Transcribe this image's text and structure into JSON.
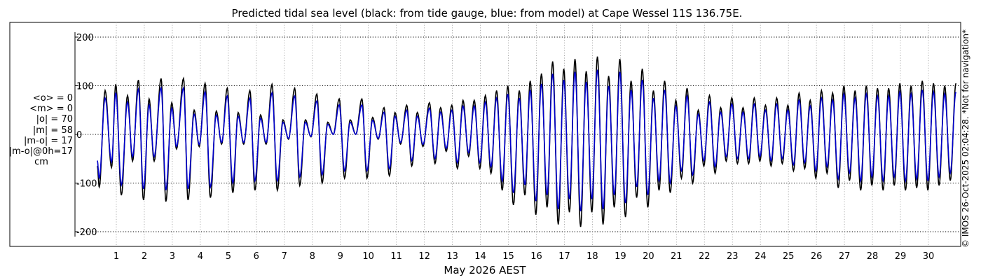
{
  "title": "Predicted tidal sea level (black: from tide gauge, blue: from model) at Cape Wessel 11S 136.75E.",
  "stats": {
    "mean_obs": "<o> = 0",
    "mean_model": "<m> = 0",
    "abs_obs": "|o| = 70",
    "abs_model": "|m| = 58",
    "abs_diff": "|m-o| = 17",
    "abs_diff_0h": "|m-o|@0h=17",
    "unit": "cm"
  },
  "copyright": "© IMOS 26-Oct-2025 02:04:28. *Not for navigation*",
  "colors": {
    "gauge": "#000000",
    "model": "#0000cc",
    "grid": "#999999"
  },
  "chart_data": {
    "type": "line",
    "title": "Predicted tidal sea level (black: from tide gauge, blue: from model) at Cape Wessel 11S 136.75E.",
    "xlabel": "May 2026 AEST",
    "ylabel": "",
    "x_ticks": [
      "1",
      "2",
      "3",
      "4",
      "5",
      "6",
      "7",
      "8",
      "9",
      "10",
      "11",
      "12",
      "13",
      "14",
      "15",
      "16",
      "17",
      "18",
      "19",
      "20",
      "21",
      "22",
      "23",
      "24",
      "25",
      "26",
      "27",
      "28",
      "29",
      "30"
    ],
    "y_ticks": [
      -200,
      -100,
      0,
      100,
      200
    ],
    "xlim": [
      0.3,
      31.0
    ],
    "ylim": [
      -220,
      220
    ],
    "grid": true,
    "series": [
      {
        "name": "tide gauge",
        "color": "#000000",
        "points": [
          [
            0.32,
            -65
          ],
          [
            0.39,
            -108
          ],
          [
            0.6,
            90
          ],
          [
            0.83,
            -68
          ],
          [
            0.98,
            103
          ],
          [
            1.18,
            -125
          ],
          [
            1.4,
            80
          ],
          [
            1.58,
            -55
          ],
          [
            1.79,
            112
          ],
          [
            1.97,
            -135
          ],
          [
            2.17,
            73
          ],
          [
            2.35,
            -55
          ],
          [
            2.6,
            115
          ],
          [
            2.77,
            -138
          ],
          [
            2.98,
            65
          ],
          [
            3.15,
            -30
          ],
          [
            3.4,
            115
          ],
          [
            3.56,
            -135
          ],
          [
            3.78,
            50
          ],
          [
            3.96,
            -25
          ],
          [
            4.17,
            105
          ],
          [
            4.36,
            -130
          ],
          [
            4.57,
            48
          ],
          [
            4.76,
            -20
          ],
          [
            4.96,
            95
          ],
          [
            5.16,
            -120
          ],
          [
            5.35,
            45
          ],
          [
            5.55,
            -20
          ],
          [
            5.77,
            90
          ],
          [
            5.95,
            -115
          ],
          [
            6.15,
            40
          ],
          [
            6.35,
            -20
          ],
          [
            6.56,
            103
          ],
          [
            6.75,
            -115
          ],
          [
            6.95,
            30
          ],
          [
            7.15,
            -10
          ],
          [
            7.37,
            95
          ],
          [
            7.55,
            -105
          ],
          [
            7.75,
            30
          ],
          [
            7.95,
            -5
          ],
          [
            8.16,
            83
          ],
          [
            8.35,
            -100
          ],
          [
            8.55,
            25
          ],
          [
            8.75,
            0
          ],
          [
            8.96,
            73
          ],
          [
            9.15,
            -90
          ],
          [
            9.35,
            30
          ],
          [
            9.55,
            0
          ],
          [
            9.77,
            73
          ],
          [
            9.95,
            -90
          ],
          [
            10.15,
            35
          ],
          [
            10.35,
            -10
          ],
          [
            10.56,
            55
          ],
          [
            10.75,
            -85
          ],
          [
            10.95,
            45
          ],
          [
            11.15,
            -20
          ],
          [
            11.37,
            60
          ],
          [
            11.55,
            -65
          ],
          [
            11.75,
            45
          ],
          [
            11.95,
            -25
          ],
          [
            12.18,
            65
          ],
          [
            12.38,
            -60
          ],
          [
            12.58,
            55
          ],
          [
            12.78,
            -35
          ],
          [
            12.98,
            60
          ],
          [
            13.18,
            -70
          ],
          [
            13.38,
            70
          ],
          [
            13.58,
            -45
          ],
          [
            13.78,
            70
          ],
          [
            13.98,
            -70
          ],
          [
            14.18,
            80
          ],
          [
            14.38,
            -80
          ],
          [
            14.58,
            90
          ],
          [
            14.78,
            -115
          ],
          [
            14.98,
            100
          ],
          [
            15.18,
            -145
          ],
          [
            15.39,
            90
          ],
          [
            15.59,
            -125
          ],
          [
            15.78,
            110
          ],
          [
            15.98,
            -165
          ],
          [
            16.18,
            125
          ],
          [
            16.38,
            -150
          ],
          [
            16.58,
            150
          ],
          [
            16.78,
            -185
          ],
          [
            16.98,
            135
          ],
          [
            17.18,
            -160
          ],
          [
            17.38,
            155
          ],
          [
            17.58,
            -190
          ],
          [
            17.78,
            130
          ],
          [
            17.98,
            -160
          ],
          [
            18.18,
            160
          ],
          [
            18.38,
            -185
          ],
          [
            18.58,
            120
          ],
          [
            18.78,
            -150
          ],
          [
            18.98,
            155
          ],
          [
            19.18,
            -170
          ],
          [
            19.38,
            110
          ],
          [
            19.58,
            -130
          ],
          [
            19.78,
            135
          ],
          [
            19.98,
            -150
          ],
          [
            20.18,
            90
          ],
          [
            20.38,
            -115
          ],
          [
            20.58,
            110
          ],
          [
            20.78,
            -120
          ],
          [
            20.98,
            70
          ],
          [
            21.18,
            -90
          ],
          [
            21.38,
            95
          ],
          [
            21.58,
            -100
          ],
          [
            21.78,
            50
          ],
          [
            21.98,
            -65
          ],
          [
            22.18,
            80
          ],
          [
            22.38,
            -80
          ],
          [
            22.58,
            55
          ],
          [
            22.78,
            -55
          ],
          [
            22.98,
            75
          ],
          [
            23.18,
            -60
          ],
          [
            23.38,
            55
          ],
          [
            23.58,
            -60
          ],
          [
            23.78,
            75
          ],
          [
            23.98,
            -55
          ],
          [
            24.18,
            60
          ],
          [
            24.38,
            -65
          ],
          [
            24.58,
            75
          ],
          [
            24.78,
            -60
          ],
          [
            24.98,
            60
          ],
          [
            25.18,
            -75
          ],
          [
            25.38,
            85
          ],
          [
            25.58,
            -70
          ],
          [
            25.78,
            70
          ],
          [
            25.98,
            -90
          ],
          [
            26.18,
            90
          ],
          [
            26.38,
            -80
          ],
          [
            26.58,
            85
          ],
          [
            26.78,
            -110
          ],
          [
            26.98,
            100
          ],
          [
            27.18,
            -95
          ],
          [
            27.38,
            90
          ],
          [
            27.58,
            -115
          ],
          [
            27.78,
            100
          ],
          [
            27.98,
            -105
          ],
          [
            28.18,
            95
          ],
          [
            28.38,
            -115
          ],
          [
            28.58,
            95
          ],
          [
            28.78,
            -105
          ],
          [
            28.98,
            105
          ],
          [
            29.18,
            -115
          ],
          [
            29.38,
            100
          ],
          [
            29.58,
            -110
          ],
          [
            29.78,
            110
          ],
          [
            29.98,
            -115
          ],
          [
            30.18,
            105
          ],
          [
            30.38,
            -105
          ],
          [
            30.58,
            100
          ],
          [
            30.78,
            -95
          ],
          [
            30.98,
            105
          ]
        ]
      },
      {
        "name": "model",
        "color": "#0000cc",
        "scale": 0.83
      }
    ]
  }
}
